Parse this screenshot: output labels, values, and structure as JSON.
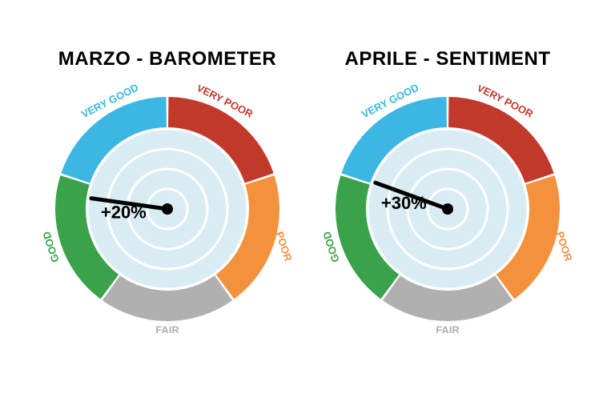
{
  "background_color": "#ffffff",
  "gauges": [
    {
      "title": "MARZO - BAROMETER",
      "title_fontsize": 24,
      "title_color": "#000000",
      "value_label": "+20%",
      "value_fontsize": 22,
      "value_color": "#000000",
      "needle_angle_deg": 172,
      "needle_color": "#000000",
      "needle_width": 5,
      "hub_radius": 7,
      "outer_radius": 140,
      "ring_inner_radius": 102,
      "radar_fill": "#d9ecf3",
      "radar_stroke": "#ffffff",
      "radar_rings": [
        100,
        75,
        50,
        25
      ],
      "label_fontsize": 13,
      "label_fontweight": 700,
      "segments": [
        {
          "label": "VERY GOOD",
          "start_deg": 90,
          "end_deg": 162,
          "color": "#3cb6e3",
          "label_angle_deg": 118,
          "label_radius": 126,
          "label_rotate": -27
        },
        {
          "label": "GOOD",
          "start_deg": 162,
          "end_deg": 234,
          "color": "#3aa24a",
          "label_angle_deg": 198,
          "label_radius": 126,
          "label_rotate": -108
        },
        {
          "label": "FAIR",
          "start_deg": 234,
          "end_deg": 306,
          "color": "#b0b0b0",
          "label_angle_deg": 270,
          "label_radius": 126,
          "label_rotate": 0
        },
        {
          "label": "POOR",
          "start_deg": 306,
          "end_deg": 18,
          "color": "#f3913c",
          "label_angle_deg": 342,
          "label_radius": 126,
          "label_rotate": 72
        },
        {
          "label": "VERY POOR",
          "start_deg": 18,
          "end_deg": 90,
          "color": "#c1392b",
          "label_angle_deg": 62,
          "label_radius": 126,
          "label_rotate": 27
        }
      ],
      "segment_gap_deg": 1.2
    },
    {
      "title": "APRILE - SENTIMENT",
      "title_fontsize": 24,
      "title_color": "#000000",
      "value_label": "+30%",
      "value_fontsize": 22,
      "value_color": "#000000",
      "needle_angle_deg": 160,
      "needle_color": "#000000",
      "needle_width": 5,
      "hub_radius": 7,
      "outer_radius": 140,
      "ring_inner_radius": 102,
      "radar_fill": "#d9ecf3",
      "radar_stroke": "#ffffff",
      "radar_rings": [
        100,
        75,
        50,
        25
      ],
      "label_fontsize": 13,
      "label_fontweight": 700,
      "segments": [
        {
          "label": "VERY GOOD",
          "start_deg": 90,
          "end_deg": 162,
          "color": "#3cb6e3",
          "label_angle_deg": 118,
          "label_radius": 126,
          "label_rotate": -27
        },
        {
          "label": "GOOD",
          "start_deg": 162,
          "end_deg": 234,
          "color": "#3aa24a",
          "label_angle_deg": 198,
          "label_radius": 126,
          "label_rotate": -108
        },
        {
          "label": "FAIR",
          "start_deg": 234,
          "end_deg": 306,
          "color": "#b0b0b0",
          "label_angle_deg": 270,
          "label_radius": 126,
          "label_rotate": 0
        },
        {
          "label": "POOR",
          "start_deg": 306,
          "end_deg": 18,
          "color": "#f3913c",
          "label_angle_deg": 342,
          "label_radius": 126,
          "label_rotate": 72
        },
        {
          "label": "VERY POOR",
          "start_deg": 18,
          "end_deg": 90,
          "color": "#c1392b",
          "label_angle_deg": 62,
          "label_radius": 126,
          "label_rotate": 27
        }
      ],
      "segment_gap_deg": 1.2
    }
  ]
}
